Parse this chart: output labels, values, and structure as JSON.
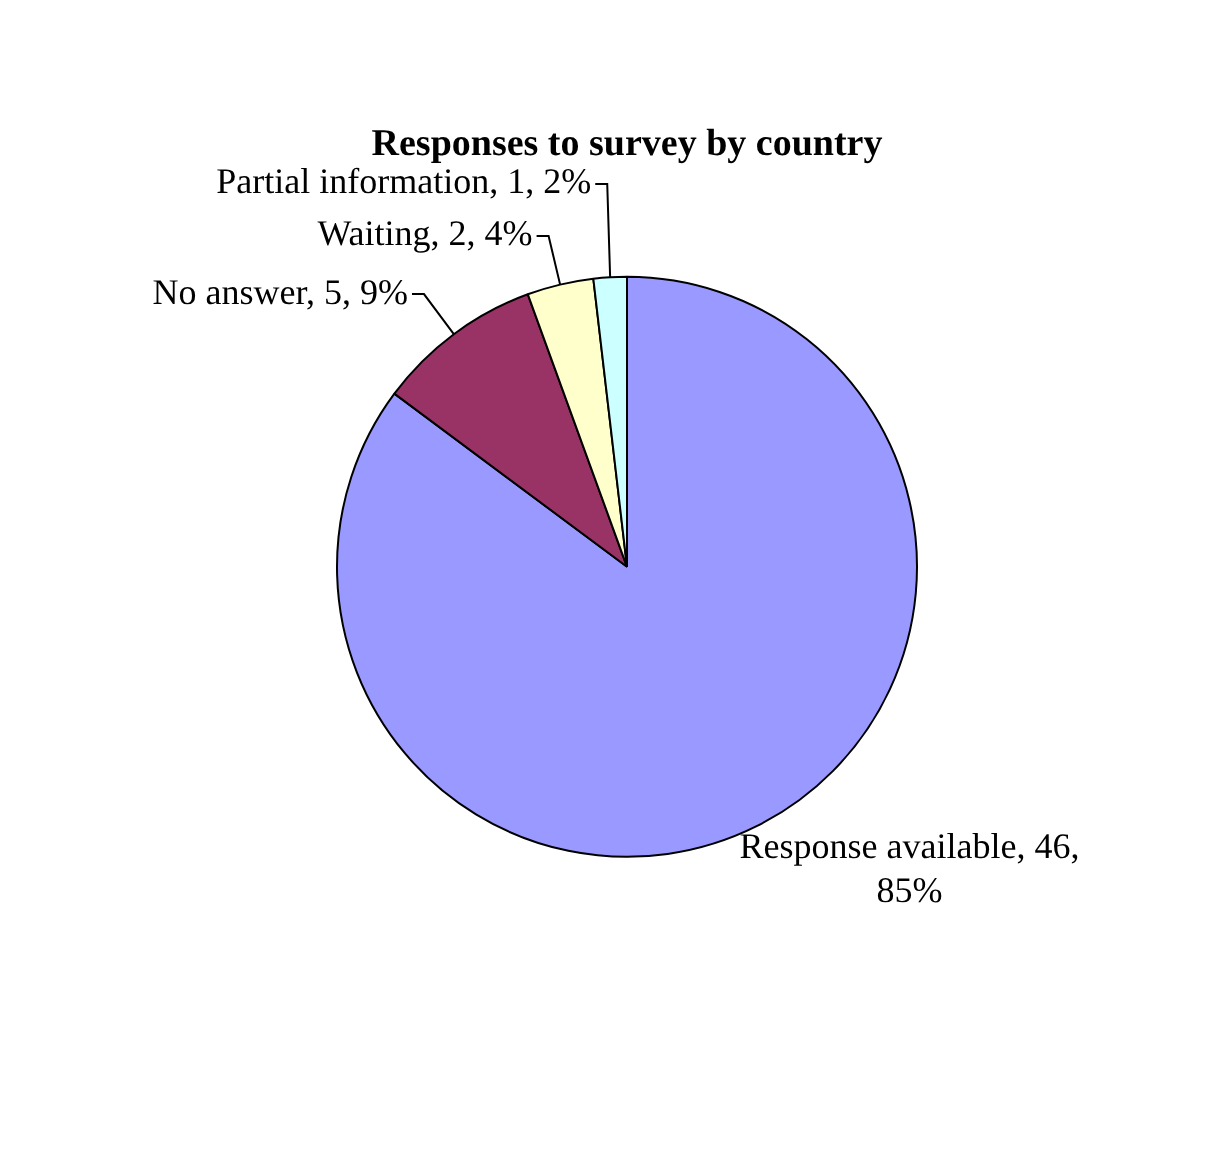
{
  "chart_data": {
    "type": "pie",
    "title": "Responses to survey by country",
    "categories": [
      "Response available",
      "No answer",
      "Waiting",
      "Partial information"
    ],
    "values": [
      46,
      5,
      2,
      1
    ],
    "value_labels": [
      "46, 85%",
      "5, 9%",
      "2, 4%",
      "1, 2%"
    ],
    "colors": [
      "#9999ff",
      "#993366",
      "#ffffcc",
      "#ccffff"
    ],
    "legend": false
  }
}
